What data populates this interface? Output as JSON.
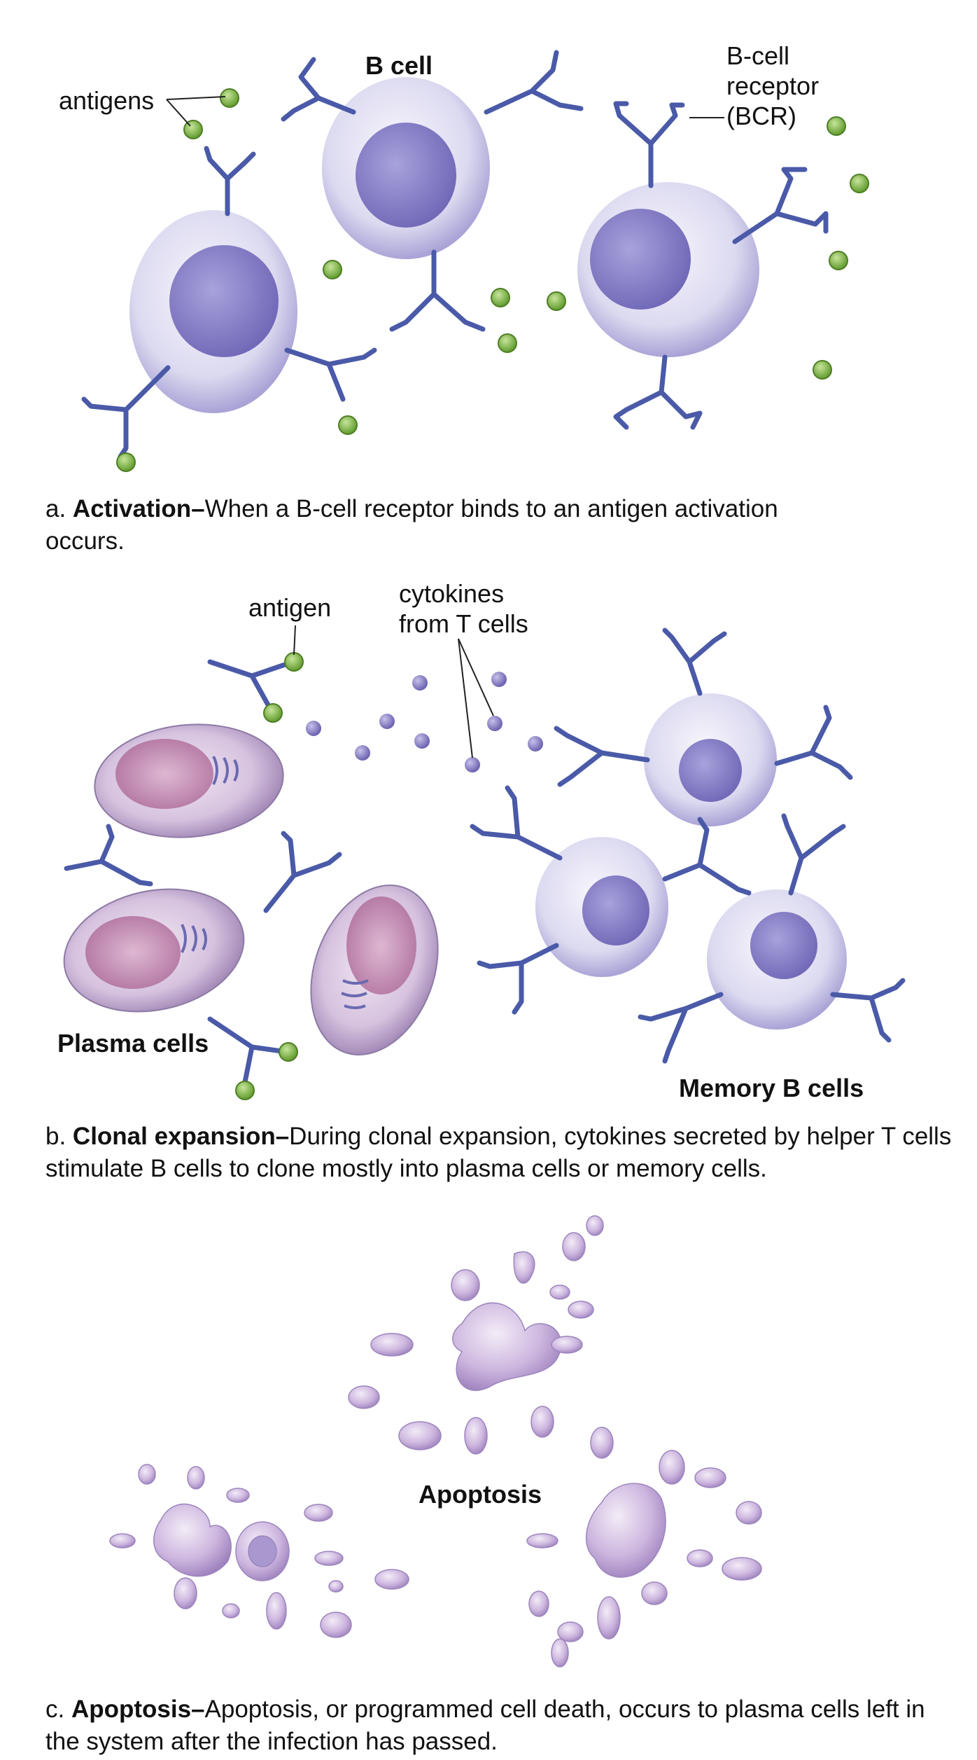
{
  "panel_a": {
    "labels": {
      "antigens": "antigens",
      "b_cell": "B cell",
      "bcr_line1": "B-cell",
      "bcr_line2": "receptor",
      "bcr_line3": "(BCR)"
    },
    "caption": {
      "prefix": "a. ",
      "title": "Activation–",
      "text": "When a B-cell receptor binds to an antigen activation occurs."
    }
  },
  "panel_b": {
    "labels": {
      "antigen": "antigen",
      "cytokines_line1": "cytokines",
      "cytokines_line2": "from T cells",
      "plasma_cells": "Plasma cells",
      "memory_b_cells": "Memory B cells"
    },
    "caption": {
      "prefix": "b. ",
      "title": "Clonal expansion–",
      "text": "During clonal expansion, cytokines secreted by helper T cells stimulate B cells to clone mostly into plasma cells or memory cells."
    }
  },
  "panel_c": {
    "labels": {
      "apoptosis": "Apoptosis"
    },
    "caption": {
      "prefix": "c. ",
      "title": "Apoptosis–",
      "text": "Apoptosis, or programmed cell death, occurs to plasma cells left in the system after the infection has passed."
    }
  },
  "colors": {
    "receptor": "#4a5aa8",
    "antigen": "#7cb342",
    "cell_body": "#e2e1f2",
    "nucleus": "#8a84c8",
    "plasma_nucleus": "#b06a9a",
    "cytokine": "#7a72b8",
    "apoptotic": "#c9b2dc"
  }
}
